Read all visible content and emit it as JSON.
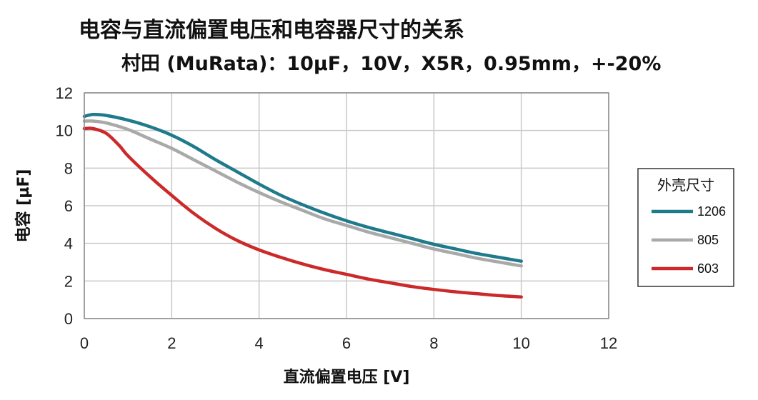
{
  "chart_data": {
    "type": "line",
    "title": "电容与直流偏置电压和电容器尺寸的关系",
    "subtitle": "村田 (MuRata)：10µF，10V，X5R，0.95mm，+-20%",
    "xlabel": "直流偏置电压 [V]",
    "ylabel": "电容 [µF]",
    "xlim": [
      0,
      12
    ],
    "ylim": [
      0,
      12
    ],
    "xticks": [
      0,
      2,
      4,
      6,
      8,
      10,
      12
    ],
    "yticks": [
      0,
      2,
      4,
      6,
      8,
      10,
      12
    ],
    "grid": true,
    "legend": {
      "title": "外壳尺寸",
      "position": "right"
    },
    "series": [
      {
        "name": "1206",
        "color": "#1f7a8c",
        "x": [
          0,
          0.2,
          0.5,
          1,
          1.5,
          2,
          2.5,
          3,
          3.5,
          4,
          4.5,
          5,
          5.5,
          6,
          6.5,
          7,
          7.5,
          8,
          8.5,
          9,
          9.5,
          10
        ],
        "y": [
          10.75,
          10.85,
          10.8,
          10.55,
          10.2,
          9.75,
          9.15,
          8.45,
          7.8,
          7.15,
          6.55,
          6.05,
          5.6,
          5.2,
          4.85,
          4.55,
          4.25,
          3.95,
          3.7,
          3.45,
          3.25,
          3.05
        ]
      },
      {
        "name": "805",
        "color": "#a9a9a9",
        "x": [
          0,
          0.2,
          0.5,
          1,
          1.5,
          2,
          2.5,
          3,
          3.5,
          4,
          4.5,
          5,
          5.5,
          6,
          6.5,
          7,
          7.5,
          8,
          8.5,
          9,
          9.5,
          10
        ],
        "y": [
          10.5,
          10.5,
          10.4,
          10.05,
          9.55,
          9.05,
          8.45,
          7.85,
          7.25,
          6.7,
          6.2,
          5.75,
          5.3,
          4.95,
          4.6,
          4.3,
          4.0,
          3.7,
          3.45,
          3.2,
          3.0,
          2.8
        ]
      },
      {
        "name": "603",
        "color": "#cc2a2a",
        "x": [
          0,
          0.2,
          0.5,
          0.8,
          1,
          1.5,
          2,
          2.5,
          3,
          3.5,
          4,
          4.5,
          5,
          5.5,
          6,
          6.5,
          7,
          7.5,
          8,
          8.5,
          9,
          9.5,
          10
        ],
        "y": [
          10.1,
          10.1,
          9.85,
          9.2,
          8.65,
          7.55,
          6.55,
          5.6,
          4.8,
          4.15,
          3.65,
          3.25,
          2.9,
          2.6,
          2.35,
          2.1,
          1.9,
          1.7,
          1.55,
          1.42,
          1.32,
          1.22,
          1.15
        ]
      }
    ]
  }
}
